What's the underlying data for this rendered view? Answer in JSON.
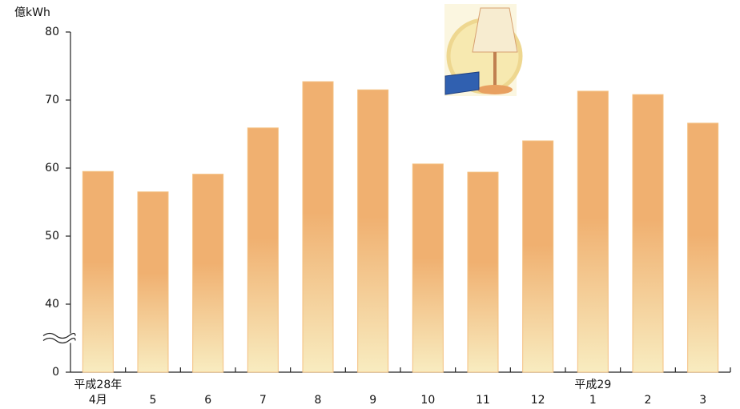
{
  "chart_data": {
    "type": "bar",
    "y_unit": "億kWh",
    "categories": [
      "4月",
      "5",
      "6",
      "7",
      "8",
      "9",
      "10",
      "11",
      "12",
      "1",
      "2",
      "3"
    ],
    "year_labels": [
      "平成28年",
      null,
      null,
      null,
      null,
      null,
      null,
      null,
      null,
      "平成29",
      null,
      null
    ],
    "values": [
      59.5,
      56.5,
      59.1,
      65.9,
      72.7,
      71.5,
      60.6,
      59.4,
      64.0,
      71.3,
      70.8,
      66.6
    ],
    "color_top": "#f0b070",
    "color_bottom": "#f8ecc0",
    "ylim": [
      0,
      80
    ],
    "yticks": [
      0,
      40,
      50,
      60,
      70,
      80
    ],
    "axis_break": true,
    "grid": false
  }
}
